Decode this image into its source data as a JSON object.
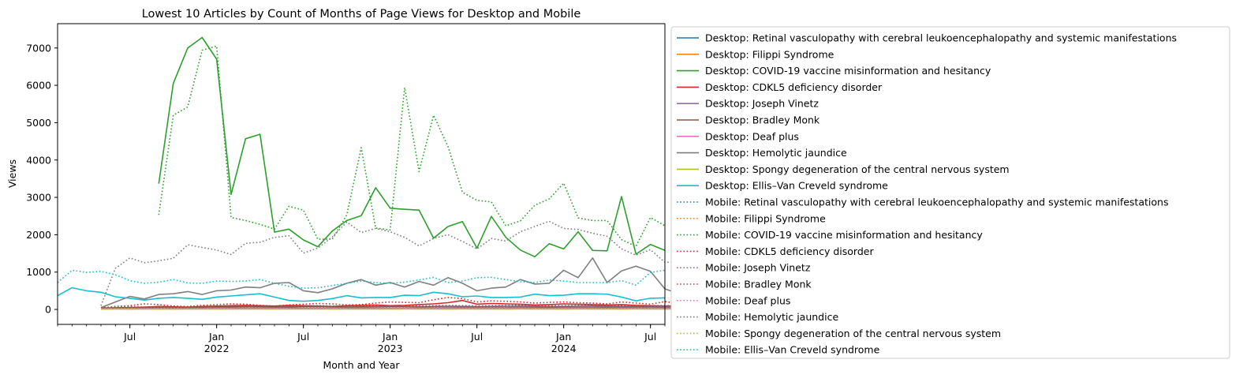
{
  "chart_data": {
    "type": "line",
    "title": "Lowest 10 Articles by Count of Months of Page Views for Desktop and Mobile",
    "xlabel": "Month and Year",
    "ylabel": "Views",
    "xlim": [
      "2021-02",
      "2024-08"
    ],
    "ylim": [
      -400,
      7650
    ],
    "yticks": [
      0,
      1000,
      2000,
      3000,
      4000,
      5000,
      6000,
      7000
    ],
    "xticks": [
      {
        "month": "2021-07",
        "label": "Jul",
        "sublabel": ""
      },
      {
        "month": "2022-01",
        "label": "Jan",
        "sublabel": "2022"
      },
      {
        "month": "2022-07",
        "label": "Jul",
        "sublabel": ""
      },
      {
        "month": "2023-01",
        "label": "Jan",
        "sublabel": "2023"
      },
      {
        "month": "2023-07",
        "label": "Jul",
        "sublabel": ""
      },
      {
        "month": "2024-01",
        "label": "Jan",
        "sublabel": "2024"
      },
      {
        "month": "2024-07",
        "label": "Jul",
        "sublabel": ""
      }
    ],
    "legend_position": "outside-right",
    "series": [
      {
        "name": "Desktop: Retinal vasculopathy with cerebral leukoencephalopathy and systemic manifestations",
        "color": "#1f77b4",
        "style": "solid",
        "start": "2021-05",
        "values": [
          20,
          25,
          20,
          22,
          25,
          20,
          22,
          25,
          28,
          30,
          32,
          28,
          30,
          35,
          30,
          28,
          25,
          30,
          32,
          35,
          30,
          28,
          25,
          30,
          28,
          25,
          30,
          32,
          35,
          30,
          28,
          25,
          30,
          28,
          30,
          32,
          35,
          30,
          32,
          30,
          28
        ]
      },
      {
        "name": "Desktop: Filippi Syndrome",
        "color": "#ff7f0e",
        "style": "solid",
        "start": "2021-05",
        "values": [
          15,
          18,
          15,
          20,
          18,
          15,
          18,
          20,
          22,
          20,
          18,
          20,
          22,
          20,
          18,
          20,
          22,
          20,
          18,
          20,
          22,
          24,
          20,
          18,
          20,
          22,
          20,
          18,
          20,
          22,
          20,
          18,
          20,
          22,
          20,
          18,
          20,
          22,
          20,
          18,
          20
        ]
      },
      {
        "name": "Desktop: COVID-19 vaccine misinformation and hesitancy",
        "color": "#2ca02c",
        "style": "solid",
        "start": "2021-09",
        "values": [
          3370,
          6050,
          7000,
          7280,
          6700,
          3080,
          4570,
          4690,
          2070,
          2150,
          1860,
          1680,
          2100,
          2380,
          2510,
          3260,
          2710,
          2680,
          2660,
          1910,
          2220,
          2350,
          1640,
          2490,
          1930,
          1590,
          1410,
          1760,
          1620,
          2080,
          1580,
          1570,
          3020,
          1480,
          1740,
          1580
        ]
      },
      {
        "name": "Desktop: CDKL5 deficiency disorder",
        "color": "#d62728",
        "style": "solid",
        "start": "2021-05",
        "values": [
          30,
          40,
          50,
          60,
          80,
          70,
          60,
          80,
          90,
          100,
          110,
          100,
          90,
          110,
          100,
          90,
          80,
          100,
          110,
          120,
          100,
          110,
          130,
          150,
          180,
          240,
          140,
          160,
          150,
          140,
          120,
          130,
          150,
          140,
          130,
          120,
          130,
          110,
          100,
          90,
          100
        ]
      },
      {
        "name": "Desktop: Joseph Vinetz",
        "color": "#9467bd",
        "style": "solid",
        "start": "2021-05",
        "values": [
          20,
          25,
          30,
          28,
          25,
          30,
          28,
          25,
          30,
          32,
          28,
          25,
          30,
          28,
          25,
          30,
          32,
          35,
          30,
          28,
          30,
          32,
          35,
          40,
          45,
          50,
          45,
          40,
          45,
          50,
          55,
          50,
          45,
          50,
          55,
          60,
          55,
          50,
          45,
          50,
          45
        ]
      },
      {
        "name": "Desktop: Bradley Monk",
        "color": "#8c564b",
        "style": "solid",
        "start": "2021-05",
        "values": [
          40,
          45,
          50,
          55,
          60,
          50,
          55,
          60,
          65,
          70,
          75,
          70,
          65,
          70,
          75,
          80,
          70,
          65,
          70,
          75,
          80,
          75,
          70,
          80,
          85,
          80,
          75,
          80,
          85,
          90,
          80,
          75,
          80,
          85,
          90,
          85,
          80,
          75,
          80,
          85,
          80
        ]
      },
      {
        "name": "Desktop: Deaf plus",
        "color": "#e377c2",
        "style": "solid",
        "start": "2021-05",
        "values": [
          10,
          12,
          10,
          15,
          12,
          10,
          12,
          15,
          18,
          15,
          12,
          15,
          18,
          15,
          12,
          15,
          18,
          15,
          12,
          15,
          18,
          20,
          15,
          12,
          15,
          18,
          15,
          12,
          15,
          18,
          15,
          12,
          15,
          18,
          15,
          12,
          15,
          18,
          15,
          12,
          15
        ]
      },
      {
        "name": "Desktop: Hemolytic jaundice",
        "color": "#7f7f7f",
        "style": "solid",
        "start": "2021-05",
        "values": [
          50,
          200,
          350,
          280,
          400,
          420,
          480,
          400,
          500,
          520,
          600,
          580,
          700,
          720,
          500,
          450,
          550,
          700,
          800,
          650,
          720,
          600,
          750,
          650,
          850,
          700,
          500,
          570,
          600,
          800,
          680,
          700,
          1050,
          850,
          1380,
          720,
          1030,
          1160,
          1020,
          550,
          420
        ]
      },
      {
        "name": "Desktop: Spongy degeneration of the central nervous system",
        "color": "#bcbd22",
        "style": "solid",
        "start": "2021-05",
        "values": [
          10,
          12,
          15,
          12,
          10,
          12,
          15,
          12,
          10,
          12,
          15,
          12,
          10,
          12,
          15,
          12,
          10,
          12,
          15,
          12,
          10,
          12,
          15,
          12,
          10,
          12,
          15,
          12,
          10,
          12,
          15,
          12,
          10,
          12,
          15,
          12,
          10,
          12,
          15,
          12,
          10
        ]
      },
      {
        "name": "Desktop: Ellis–Van Creveld syndrome",
        "color": "#17becf",
        "style": "solid",
        "start": "2021-02",
        "values": [
          370,
          580,
          500,
          460,
          340,
          300,
          250,
          300,
          320,
          300,
          270,
          330,
          360,
          390,
          420,
          330,
          240,
          220,
          240,
          290,
          370,
          310,
          320,
          320,
          380,
          370,
          460,
          420,
          340,
          360,
          320,
          320,
          330,
          410,
          370,
          380,
          420,
          420,
          410,
          330,
          230,
          300,
          310
        ]
      },
      {
        "name": "Mobile: Retinal vasculopathy with cerebral leukoencephalopathy and systemic manifestations",
        "color": "#1f77b4",
        "style": "dotted",
        "start": "2021-05",
        "values": [
          30,
          35,
          30,
          35,
          40,
          35,
          30,
          35,
          40,
          45,
          40,
          35,
          40,
          45,
          40,
          35,
          40,
          45,
          50,
          45,
          40,
          45,
          50,
          55,
          50,
          45,
          50,
          55,
          60,
          55,
          50,
          55,
          60,
          55,
          50,
          55,
          60,
          55,
          50,
          55,
          50
        ]
      },
      {
        "name": "Mobile: Filippi Syndrome",
        "color": "#ff7f0e",
        "style": "dotted",
        "start": "2021-05",
        "values": [
          20,
          25,
          20,
          25,
          30,
          25,
          20,
          25,
          30,
          25,
          20,
          25,
          30,
          25,
          20,
          25,
          30,
          35,
          30,
          25,
          30,
          35,
          30,
          25,
          30,
          35,
          30,
          25,
          30,
          35,
          30,
          25,
          30,
          35,
          30,
          25,
          30,
          35,
          30,
          25,
          30
        ]
      },
      {
        "name": "Mobile: COVID-19 vaccine misinformation and hesitancy",
        "color": "#2ca02c",
        "style": "dotted",
        "start": "2021-09",
        "values": [
          2530,
          5200,
          5420,
          6940,
          7050,
          2460,
          2380,
          2280,
          2150,
          2760,
          2660,
          1880,
          1880,
          2530,
          4330,
          2180,
          2130,
          5940,
          3690,
          5200,
          4360,
          3140,
          2920,
          2880,
          2240,
          2370,
          2790,
          2960,
          3380,
          2450,
          2380,
          2380,
          1870,
          1690,
          2460,
          2240
        ]
      },
      {
        "name": "Mobile: CDKL5 deficiency disorder",
        "color": "#d62728",
        "style": "dotted",
        "start": "2021-05",
        "values": [
          40,
          80,
          100,
          150,
          130,
          90,
          80,
          110,
          130,
          150,
          140,
          110,
          90,
          120,
          140,
          160,
          150,
          120,
          130,
          170,
          200,
          190,
          180,
          260,
          320,
          290,
          200,
          230,
          220,
          200,
          170,
          190,
          200,
          180,
          170,
          150,
          200,
          170,
          140,
          210,
          160
        ]
      },
      {
        "name": "Mobile: Joseph Vinetz",
        "color": "#9467bd",
        "style": "dotted",
        "start": "2021-05",
        "values": [
          30,
          35,
          40,
          35,
          40,
          45,
          40,
          35,
          40,
          45,
          50,
          45,
          40,
          45,
          50,
          55,
          50,
          45,
          50,
          55,
          60,
          55,
          50,
          60,
          70,
          80,
          75,
          70,
          75,
          80,
          90,
          85,
          80,
          85,
          90,
          95,
          90,
          85,
          80,
          85,
          80
        ]
      },
      {
        "name": "Mobile: Bradley Monk",
        "color": "#8c564b",
        "style": "dotted",
        "start": "2021-05",
        "values": [
          50,
          60,
          70,
          65,
          70,
          80,
          75,
          70,
          80,
          85,
          90,
          85,
          80,
          90,
          95,
          100,
          90,
          85,
          90,
          95,
          100,
          95,
          90,
          100,
          105,
          100,
          95,
          100,
          105,
          110,
          100,
          95,
          100,
          105,
          110,
          105,
          100,
          95,
          100,
          105,
          100
        ]
      },
      {
        "name": "Mobile: Deaf plus",
        "color": "#e377c2",
        "style": "dotted",
        "start": "2021-05",
        "values": [
          20,
          25,
          20,
          25,
          30,
          25,
          20,
          25,
          30,
          25,
          20,
          25,
          30,
          25,
          20,
          25,
          30,
          25,
          20,
          25,
          30,
          35,
          30,
          25,
          30,
          35,
          30,
          25,
          30,
          35,
          30,
          25,
          30,
          35,
          30,
          25,
          30,
          35,
          30,
          25,
          30
        ]
      },
      {
        "name": "Mobile: Hemolytic jaundice",
        "color": "#7f7f7f",
        "style": "dotted",
        "start": "2021-05",
        "values": [
          100,
          1100,
          1380,
          1250,
          1300,
          1370,
          1730,
          1660,
          1590,
          1470,
          1770,
          1800,
          1930,
          1970,
          1510,
          1640,
          1940,
          2340,
          2060,
          2170,
          2080,
          1930,
          1700,
          1900,
          2000,
          1820,
          1620,
          1900,
          1830,
          2080,
          2220,
          2360,
          2170,
          2140,
          2040,
          1960,
          1620,
          1450,
          1600,
          1260,
          1270
        ]
      },
      {
        "name": "Mobile: Spongy degeneration of the central nervous system",
        "color": "#bcbd22",
        "style": "dotted",
        "start": "2021-05",
        "values": [
          15,
          18,
          20,
          18,
          15,
          18,
          20,
          18,
          15,
          18,
          20,
          18,
          15,
          18,
          20,
          18,
          15,
          18,
          20,
          18,
          15,
          18,
          20,
          18,
          15,
          18,
          20,
          18,
          15,
          18,
          20,
          18,
          15,
          18,
          20,
          18,
          15,
          18,
          20,
          18,
          15
        ]
      },
      {
        "name": "Mobile: Ellis–Van Creveld syndrome",
        "color": "#17becf",
        "style": "dotted",
        "start": "2021-02",
        "values": [
          720,
          1050,
          990,
          1020,
          930,
          770,
          700,
          730,
          800,
          710,
          700,
          760,
          750,
          760,
          800,
          700,
          620,
          570,
          580,
          640,
          700,
          760,
          720,
          700,
          730,
          790,
          860,
          720,
          760,
          850,
          860,
          800,
          740,
          720,
          790,
          760,
          720,
          720,
          720,
          770,
          650,
          990,
          1050
        ]
      }
    ]
  }
}
